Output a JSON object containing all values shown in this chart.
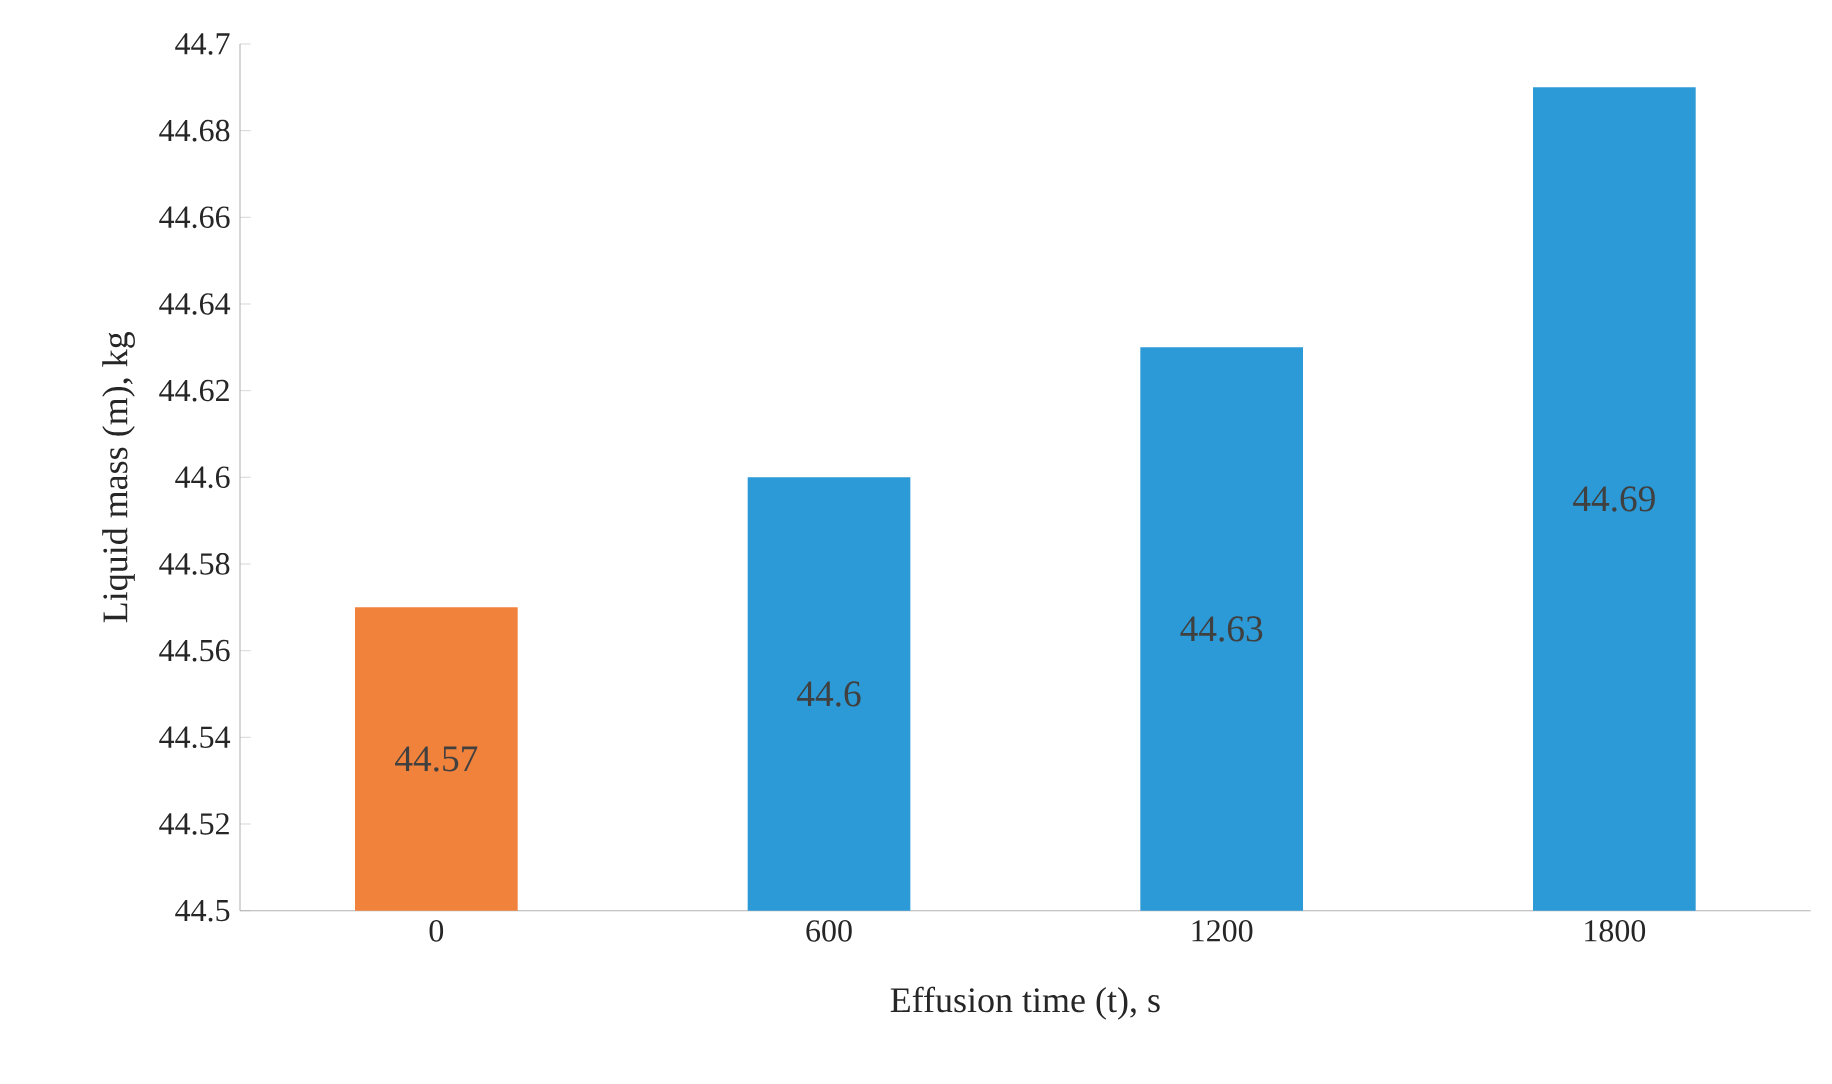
{
  "chart_data": {
    "type": "bar",
    "xlabel": "Effusion time (t), s",
    "ylabel": "Liquid mass (m), kg",
    "categories": [
      "0",
      "600",
      "1200",
      "1800"
    ],
    "values": [
      44.57,
      44.6,
      44.63,
      44.69
    ],
    "colors": [
      "#f0823c",
      "#2b9ad6",
      "#2b9ad6",
      "#2b9ad6"
    ],
    "ylim": [
      44.5,
      44.7
    ],
    "yticks": [
      44.5,
      44.52,
      44.54,
      44.56,
      44.58,
      44.6,
      44.62,
      44.64,
      44.66,
      44.68,
      44.7
    ],
    "data_labels": true
  }
}
